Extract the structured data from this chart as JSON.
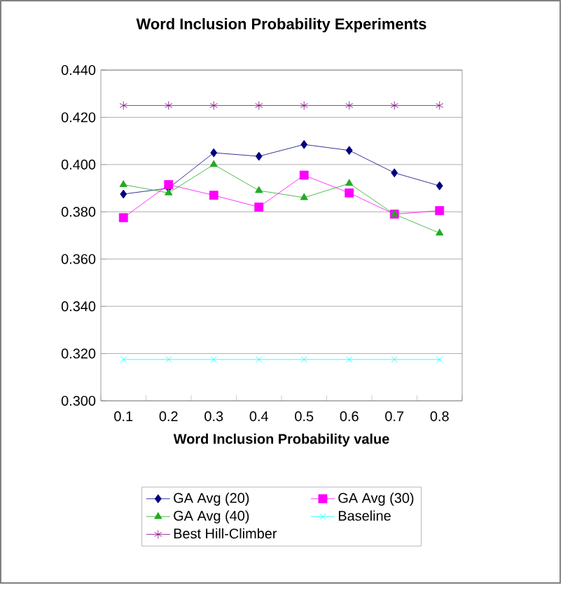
{
  "chart_data": {
    "type": "line",
    "title": "Word Inclusion Probability Experiments",
    "xlabel": "Word Inclusion Probability value",
    "categories": [
      "0.1",
      "0.2",
      "0.3",
      "0.4",
      "0.5",
      "0.6",
      "0.7",
      "0.8"
    ],
    "ylim": [
      0.3,
      0.44
    ],
    "yticks": [
      {
        "value": 0.3,
        "label": "0.300"
      },
      {
        "value": 0.32,
        "label": "0.320"
      },
      {
        "value": 0.34,
        "label": "0.340"
      },
      {
        "value": 0.36,
        "label": "0.360"
      },
      {
        "value": 0.38,
        "label": "0.380"
      },
      {
        "value": 0.4,
        "label": "0.400"
      },
      {
        "value": 0.42,
        "label": "0.420"
      },
      {
        "value": 0.44,
        "label": "0.440"
      }
    ],
    "grid": "y",
    "legend": "bottom",
    "line_style": "solid",
    "series": [
      {
        "name": "GA Avg (20)",
        "color": "#000080",
        "marker": "diamond",
        "values": [
          0.3875,
          0.39,
          0.405,
          0.4035,
          0.4085,
          0.406,
          0.3965,
          0.391
        ]
      },
      {
        "name": "GA Avg (30)",
        "color": "#ff00ff",
        "marker": "square",
        "values": [
          0.3775,
          0.3915,
          0.387,
          0.382,
          0.3955,
          0.388,
          0.379,
          0.3805
        ]
      },
      {
        "name": "GA Avg (40)",
        "color": "#22aa22",
        "marker": "triangle",
        "values": [
          0.3915,
          0.388,
          0.4,
          0.389,
          0.386,
          0.392,
          0.379,
          0.371
        ]
      },
      {
        "name": "Baseline",
        "color": "#00ffff",
        "marker": "cross",
        "values": [
          0.3175,
          0.3175,
          0.3175,
          0.3175,
          0.3175,
          0.3175,
          0.3175,
          0.3175
        ]
      },
      {
        "name": "Best Hill-Climber",
        "color": "#800080",
        "marker": "cross",
        "values": [
          0.425,
          0.425,
          0.425,
          0.425,
          0.425,
          0.425,
          0.425,
          0.425
        ]
      }
    ]
  }
}
